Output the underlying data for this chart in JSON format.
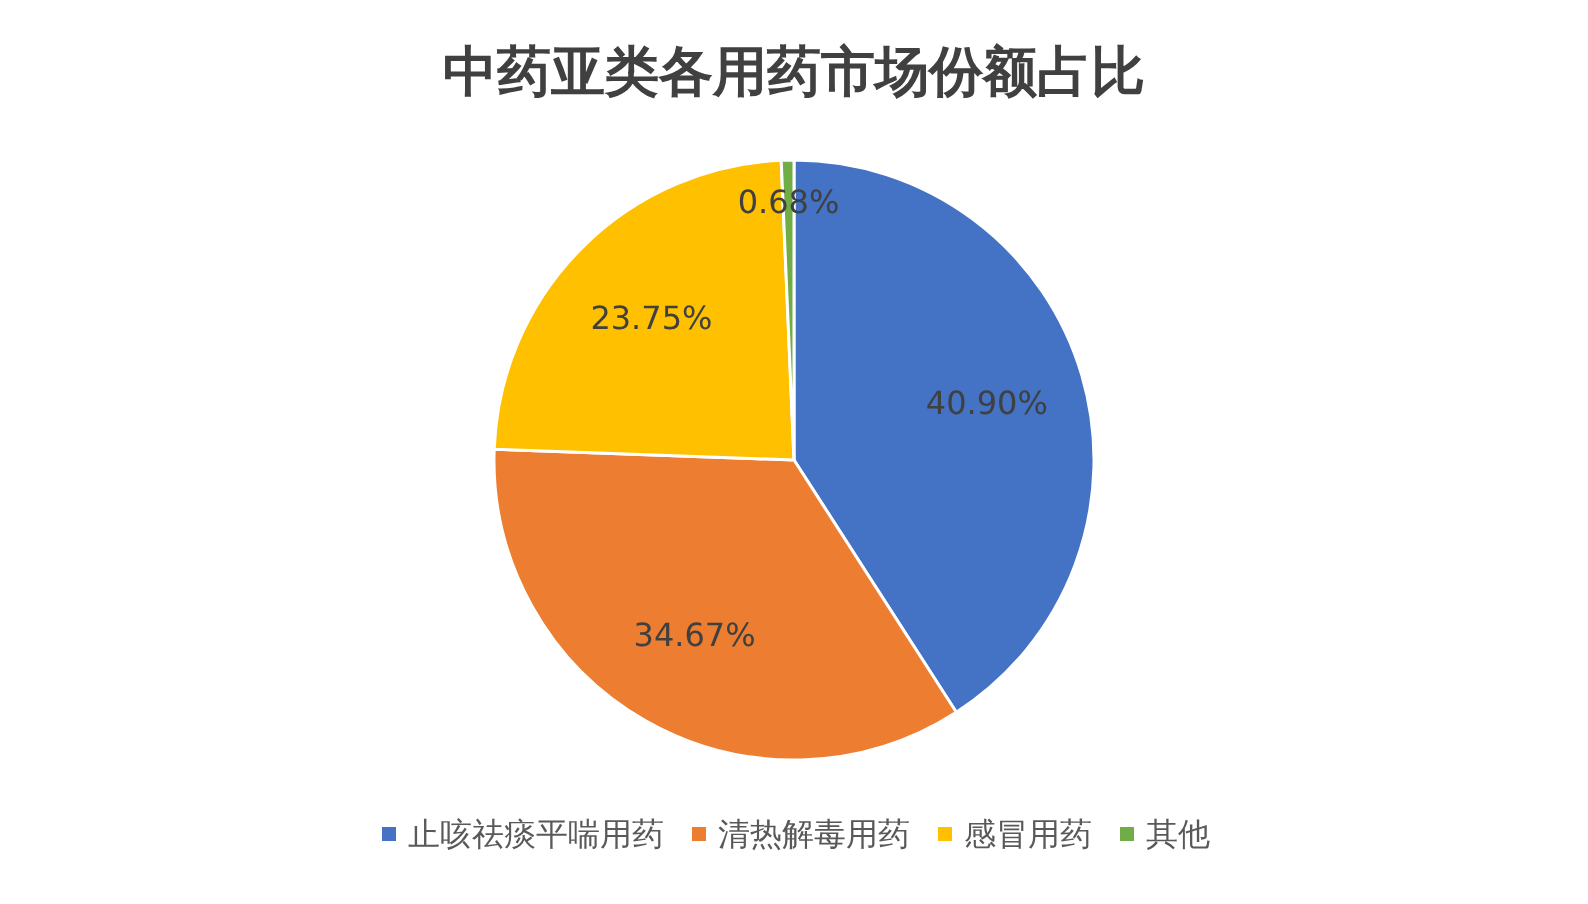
{
  "chart_data": {
    "type": "pie",
    "title": "中药亚类各用药市场份额占比",
    "categories": [
      "止咳祛痰平喘用药",
      "清热解毒用药",
      "感冒用药",
      "其他"
    ],
    "values": [
      40.9,
      34.67,
      23.75,
      0.68
    ],
    "colors": [
      "#4472c4",
      "#ed7d31",
      "#ffc000",
      "#70ad47"
    ],
    "value_labels": [
      "40.90%",
      "34.67%",
      "23.75%",
      "0.68%"
    ],
    "legend": "bottom"
  }
}
